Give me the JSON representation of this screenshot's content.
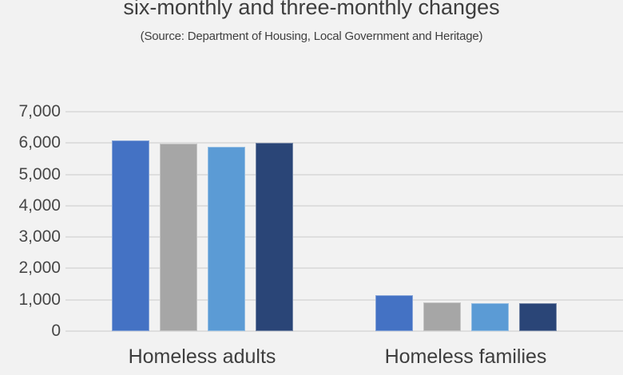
{
  "chart": {
    "title": "six-monthly and three-monthly changes",
    "source": "(Source: Department of Housing, Local Government and Heritage)"
  },
  "colors": {
    "background": "#f2f2f2",
    "gridline": "#dedede",
    "title_text": "#3e3e3e",
    "axis_text": "#474747"
  },
  "chart_data": {
    "type": "bar",
    "title": "six-monthly and three-monthly changes",
    "subtitle": "(Source: Department of Housing, Local Government and Heritage)",
    "categories": [
      "Homeless adults",
      "Homeless families"
    ],
    "series": [
      {
        "name": "series-1-blue",
        "color": "#4472c4",
        "values": [
          6090,
          1140
        ]
      },
      {
        "name": "series-2-gray",
        "color": "#a6a6a6",
        "values": [
          5990,
          910
        ]
      },
      {
        "name": "series-3-light-blue",
        "color": "#5b9bd5",
        "values": [
          5890,
          890
        ]
      },
      {
        "name": "series-4-dark-navy",
        "color": "#2a4577",
        "values": [
          6010,
          890
        ]
      }
    ],
    "xlabel": "",
    "ylabel": "",
    "ylim": [
      0,
      7000
    ],
    "yticks": [
      {
        "value": 0,
        "label": "0"
      },
      {
        "value": 1000,
        "label": "1,000"
      },
      {
        "value": 2000,
        "label": "2,000"
      },
      {
        "value": 3000,
        "label": "3,000"
      },
      {
        "value": 4000,
        "label": "4,000"
      },
      {
        "value": 5000,
        "label": "5,000"
      },
      {
        "value": 6000,
        "label": "6,000"
      },
      {
        "value": 7000,
        "label": "7,000"
      }
    ],
    "grid": true,
    "legend": "none"
  }
}
